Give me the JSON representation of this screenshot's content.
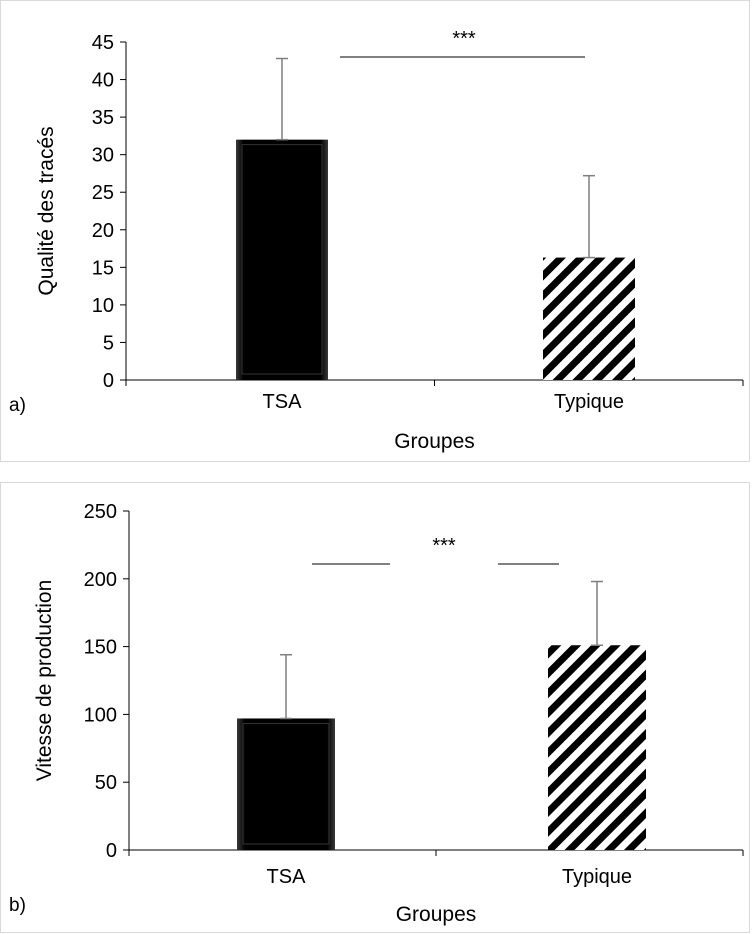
{
  "panels": [
    {
      "tag": "a)",
      "chart_data": {
        "type": "bar",
        "categories": [
          "TSA",
          "Typique"
        ],
        "values": [
          32,
          16.3
        ],
        "error": [
          10.8,
          10.9
        ],
        "xlabel": "Groupes",
        "ylabel": "Qualité des tracés",
        "ylim": [
          0,
          45
        ],
        "yticks": [
          0,
          5,
          10,
          15,
          20,
          25,
          30,
          35,
          40,
          45
        ],
        "significance": "***",
        "grid": false,
        "bar_styles": [
          "solid-black",
          "diagonal-stripes"
        ]
      }
    },
    {
      "tag": "b)",
      "chart_data": {
        "type": "bar",
        "categories": [
          "TSA",
          "Typique"
        ],
        "values": [
          97,
          151
        ],
        "error": [
          47,
          47
        ],
        "xlabel": "Groupes",
        "ylabel": "Vitesse de production",
        "ylim": [
          0,
          250
        ],
        "yticks": [
          0,
          50,
          100,
          150,
          200,
          250
        ],
        "significance": "***",
        "grid": false,
        "bar_styles": [
          "solid-black",
          "diagonal-stripes"
        ]
      }
    }
  ]
}
